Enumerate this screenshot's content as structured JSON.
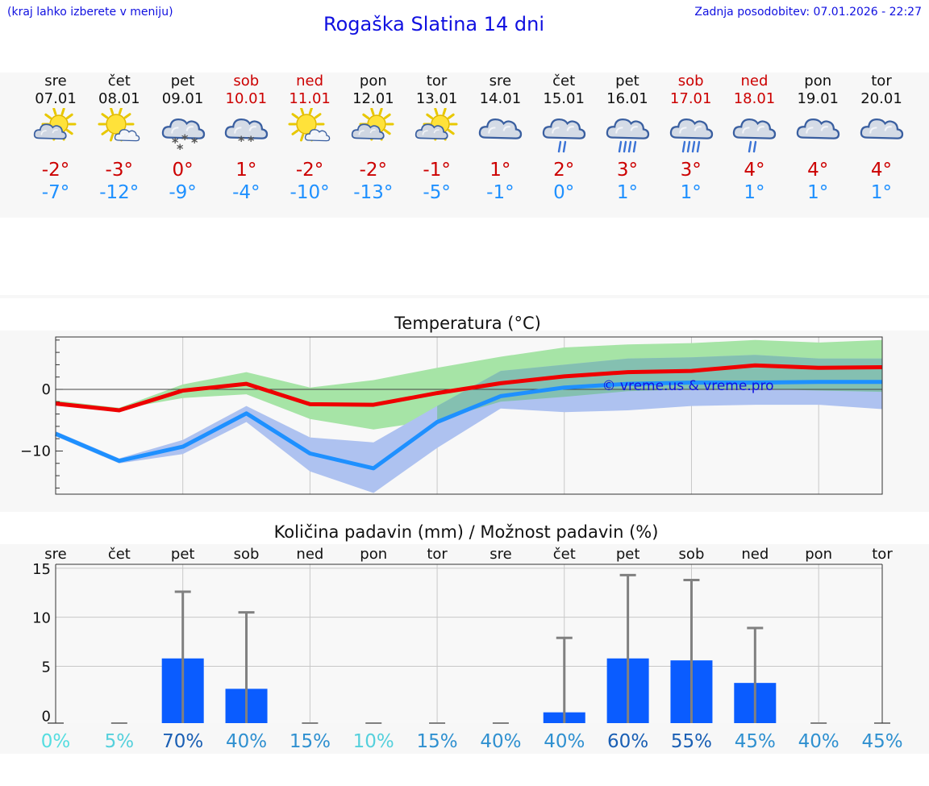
{
  "header": {
    "note": "(kraj lahko izberete v meniju)",
    "title": "Rogaška Slatina 14 dni",
    "updated": "Zadnja posodobitev: 07.01.2026 - 22:27"
  },
  "days": [
    {
      "name": "sre",
      "date": "07.01",
      "weekend": false,
      "icon": "partly-sunny-icon",
      "max": "-2°",
      "min": "-7°"
    },
    {
      "name": "čet",
      "date": "08.01",
      "weekend": false,
      "icon": "mostly-sunny-icon",
      "max": "-3°",
      "min": "-12°"
    },
    {
      "name": "pet",
      "date": "09.01",
      "weekend": false,
      "icon": "cloud-snow-icon",
      "max": "0°",
      "min": "-9°"
    },
    {
      "name": "sob",
      "date": "10.01",
      "weekend": true,
      "icon": "cloud-light-snow-icon",
      "max": "1°",
      "min": "-4°"
    },
    {
      "name": "ned",
      "date": "11.01",
      "weekend": true,
      "icon": "mostly-sunny-icon",
      "max": "-2°",
      "min": "-10°"
    },
    {
      "name": "pon",
      "date": "12.01",
      "weekend": false,
      "icon": "partly-sunny-icon",
      "max": "-2°",
      "min": "-13°"
    },
    {
      "name": "tor",
      "date": "13.01",
      "weekend": false,
      "icon": "partly-sunny-icon",
      "max": "-1°",
      "min": "-5°"
    },
    {
      "name": "sre",
      "date": "14.01",
      "weekend": false,
      "icon": "cloudy-icon",
      "max": "1°",
      "min": "-1°"
    },
    {
      "name": "čet",
      "date": "15.01",
      "weekend": false,
      "icon": "cloud-light-rain-icon",
      "max": "2°",
      "min": "0°"
    },
    {
      "name": "pet",
      "date": "16.01",
      "weekend": false,
      "icon": "cloud-rain-icon",
      "max": "3°",
      "min": "1°"
    },
    {
      "name": "sob",
      "date": "17.01",
      "weekend": true,
      "icon": "cloud-rain-icon",
      "max": "3°",
      "min": "1°"
    },
    {
      "name": "ned",
      "date": "18.01",
      "weekend": true,
      "icon": "cloud-light-rain-icon",
      "max": "4°",
      "min": "1°"
    },
    {
      "name": "pon",
      "date": "19.01",
      "weekend": false,
      "icon": "cloudy-icon",
      "max": "4°",
      "min": "1°"
    },
    {
      "name": "tor",
      "date": "20.01",
      "weekend": false,
      "icon": "cloudy-icon",
      "max": "4°",
      "min": "1°"
    }
  ],
  "colors": {
    "max_line": "#ee0000",
    "min_line": "#1e90ff",
    "max_band": "#a6e4a6",
    "min_band": "#aec2f0",
    "overlap_band": "#7cc0a6",
    "precip_bar": "#0a5cff",
    "error_bar": "#808080",
    "plot_bg": "#f8f8f8",
    "grid": "#c8c8c8",
    "title_text": "#1010e0"
  },
  "chart_data": [
    {
      "type": "line",
      "title": "Temperatura (°C)",
      "ylabel": "°C",
      "ylim": [
        -17,
        8.5
      ],
      "yticks": [
        0,
        -10
      ],
      "y_tick_labels": [
        "0",
        "−10"
      ],
      "watermark": "© vreme.us & vreme.pro",
      "x": [
        0,
        1,
        2,
        3,
        4,
        5,
        6,
        7,
        8,
        9,
        10,
        11,
        12,
        13
      ],
      "series": [
        {
          "name": "max",
          "values": [
            -2.3,
            -3.4,
            -0.2,
            0.9,
            -2.4,
            -2.5,
            -0.6,
            1.0,
            2.1,
            2.8,
            3.0,
            3.9,
            3.5,
            3.6
          ],
          "band_low": [
            -2.6,
            -3.2,
            -1.4,
            -0.8,
            -4.8,
            -6.5,
            -5.0,
            -2.0,
            -1.2,
            -0.3,
            0.0,
            0.1,
            -0.2,
            -0.4
          ],
          "band_high": [
            -1.8,
            -3.0,
            0.8,
            2.8,
            0.3,
            1.5,
            3.5,
            5.3,
            6.8,
            7.3,
            7.5,
            8.0,
            7.6,
            8.0
          ]
        },
        {
          "name": "min",
          "values": [
            -7.2,
            -11.6,
            -9.3,
            -3.9,
            -10.4,
            -12.8,
            -5.3,
            -1.1,
            0.3,
            0.9,
            1.1,
            1.1,
            1.2,
            1.2
          ],
          "band_low": [
            -7.6,
            -12.0,
            -10.5,
            -5.3,
            -13.3,
            -16.8,
            -9.5,
            -3.1,
            -3.7,
            -3.4,
            -2.7,
            -2.5,
            -2.5,
            -3.2
          ],
          "band_high": [
            -6.8,
            -11.2,
            -8.2,
            -2.7,
            -7.8,
            -8.6,
            -2.7,
            3.0,
            4.0,
            5.0,
            5.2,
            5.6,
            5.0,
            5.0
          ]
        }
      ]
    },
    {
      "type": "bar",
      "title": "Količina padavin (mm) / Možnost padavin (%)",
      "categories": [
        "sre",
        "čet",
        "pet",
        "sob",
        "ned",
        "pon",
        "tor",
        "sre",
        "čet",
        "pet",
        "sob",
        "ned",
        "pon",
        "tor"
      ],
      "values": [
        0,
        0,
        5.8,
        2.7,
        0,
        0,
        0,
        0,
        0.3,
        5.8,
        5.6,
        3.3,
        0,
        0
      ],
      "error_high": [
        0,
        0,
        12.6,
        10.5,
        0,
        0,
        0,
        0,
        7.9,
        14.3,
        13.8,
        8.9,
        0,
        0
      ],
      "probability": [
        "0%",
        "5%",
        "70%",
        "40%",
        "15%",
        "10%",
        "15%",
        "40%",
        "40%",
        "60%",
        "55%",
        "45%",
        "40%",
        "45%"
      ],
      "probability_colors": [
        "#55dde0",
        "#55d0dc",
        "#1a5fb4",
        "#2f90d0",
        "#2f90d0",
        "#55d0dc",
        "#2f90d0",
        "#2f90d0",
        "#2f90d0",
        "#1a5fb4",
        "#1a5fb4",
        "#2f90d0",
        "#2f90d0",
        "#2f90d0"
      ],
      "ylim": [
        -0.8,
        15.4
      ],
      "yticks": [
        0,
        5,
        10,
        15
      ],
      "y_tick_labels": [
        "0",
        "5",
        "10",
        "15"
      ]
    }
  ]
}
